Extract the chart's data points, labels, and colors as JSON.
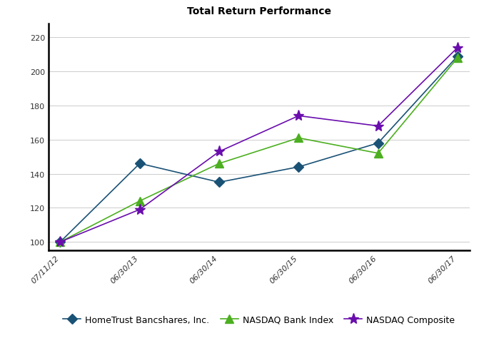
{
  "title": "Total Return Performance",
  "x_labels": [
    "07/11/12",
    "06/30/13",
    "06/30/14",
    "06/30/15",
    "06/30/16",
    "06/30/17"
  ],
  "series": [
    {
      "name": "HomeTrust Bancshares, Inc.",
      "values": [
        100,
        146,
        135,
        144,
        158,
        209
      ],
      "color": "#1a5276",
      "marker": "D",
      "markersize": 7
    },
    {
      "name": "NASDAQ Bank Index",
      "values": [
        100,
        124,
        146,
        161,
        152,
        208
      ],
      "color": "#4caf20",
      "marker": "^",
      "markersize": 8
    },
    {
      "name": "NASDAQ Composite",
      "values": [
        100,
        119,
        153,
        174,
        168,
        214
      ],
      "color": "#6a0dad",
      "marker": "*",
      "markersize": 11
    }
  ],
  "ylim": [
    95,
    228
  ],
  "yticks": [
    100,
    120,
    140,
    160,
    180,
    200,
    220
  ],
  "background_color": "#ffffff",
  "grid_color": "#cccccc",
  "title_fontsize": 10,
  "legend_fontsize": 9,
  "tick_fontsize": 8
}
